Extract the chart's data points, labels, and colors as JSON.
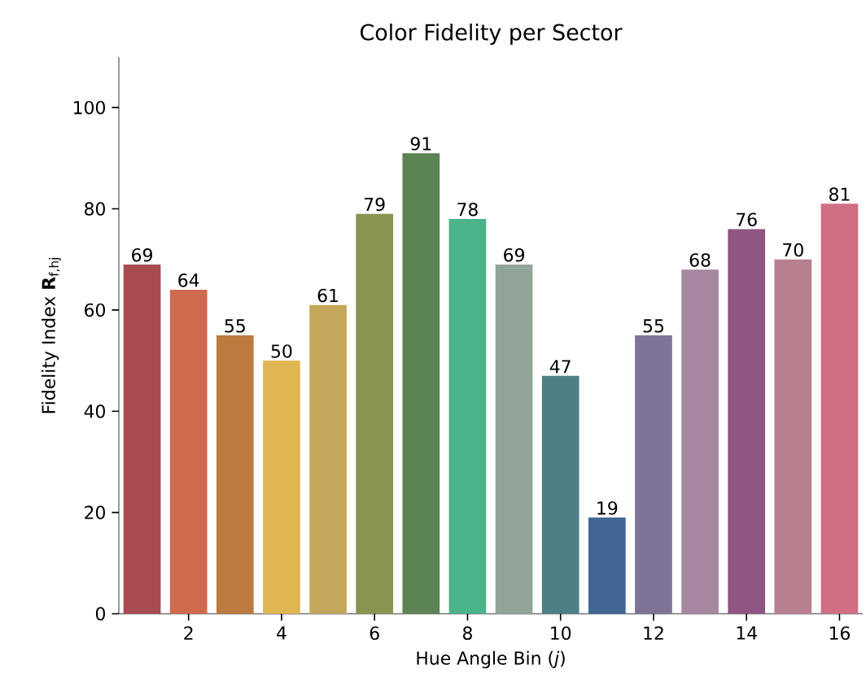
{
  "chart_data": {
    "type": "bar",
    "title": "Color Fidelity per Sector",
    "xlabel": "Hue Angle Bin (*j*)",
    "ylabel": "Fidelity Index **R**$_{f,hj}$",
    "x": [
      1,
      2,
      3,
      4,
      5,
      6,
      7,
      8,
      9,
      10,
      11,
      12,
      13,
      14,
      15,
      16
    ],
    "values": [
      69,
      64,
      55,
      50,
      61,
      79,
      91,
      78,
      69,
      47,
      19,
      55,
      68,
      76,
      70,
      81
    ],
    "colors": [
      "#a84c52",
      "#d06a4f",
      "#bd7a3f",
      "#e0b650",
      "#c4a75a",
      "#8a9350",
      "#5b8354",
      "#4cb38a",
      "#90a497",
      "#4e7f84",
      "#3f6695",
      "#7f7497",
      "#a686a0",
      "#8e5680",
      "#b87f8f",
      "#d06f83"
    ],
    "data_labels": true,
    "xlim": [
      0.5,
      16.5
    ],
    "ylim": [
      0,
      110
    ],
    "xticks": [
      2,
      4,
      6,
      8,
      10,
      12,
      14,
      16
    ],
    "yticks": [
      0,
      20,
      40,
      60,
      80,
      100
    ],
    "grid": false
  }
}
